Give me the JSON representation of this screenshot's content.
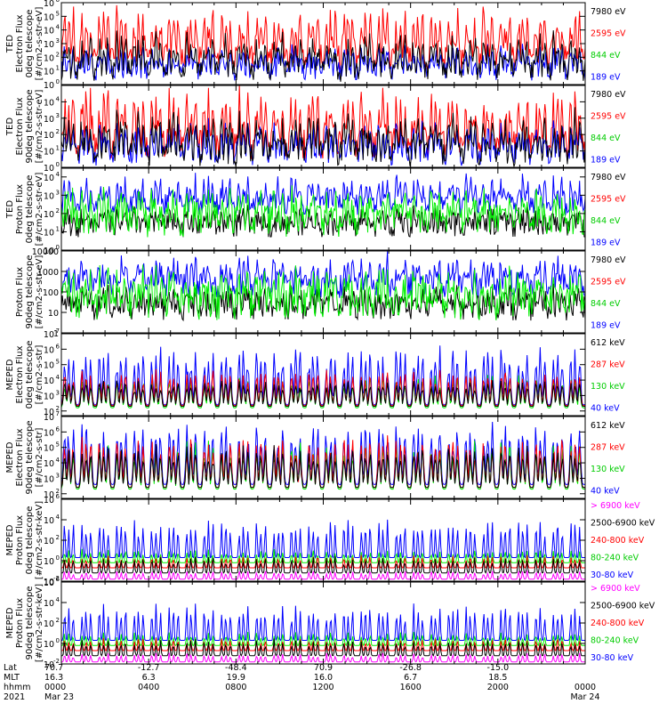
{
  "chart_data": {
    "type": "line",
    "x_start": "2021-03-23 00:00",
    "x_end": "2021-03-24 00:00",
    "x_ticks": [
      {
        "lat": "70.7",
        "mlt": "16.3",
        "hhmm": "0000",
        "date": "Mar 23"
      },
      {
        "lat": "-12.7",
        "mlt": "6.3",
        "hhmm": "0400",
        "date": ""
      },
      {
        "lat": "-48.4",
        "mlt": "19.9",
        "hhmm": "0800",
        "date": ""
      },
      {
        "lat": "70.9",
        "mlt": "16.0",
        "hhmm": "1200",
        "date": ""
      },
      {
        "lat": "-26.8",
        "mlt": "6.7",
        "hhmm": "1600",
        "date": ""
      },
      {
        "lat": "-15.0",
        "mlt": "18.5",
        "hhmm": "2000",
        "date": ""
      },
      {
        "lat": "",
        "mlt": "",
        "hhmm": "0000",
        "date": "Mar 24"
      }
    ],
    "row_labels": [
      "Lat",
      "MLT",
      "hhmm",
      "2021"
    ],
    "panels": [
      {
        "ylabel": [
          "TED",
          "Electron Flux",
          "0deg telescope",
          "[#/cm2-s-str-eV]"
        ],
        "yscale": "log",
        "ylim": [
          1,
          1000000
        ],
        "yticks": [
          {
            "v": 1,
            "label": "10",
            "exp": "0"
          },
          {
            "v": 10,
            "label": "10",
            "exp": "1"
          },
          {
            "v": 100,
            "label": "10",
            "exp": "2"
          },
          {
            "v": 1000,
            "label": "10",
            "exp": "3"
          },
          {
            "v": 10000,
            "label": "10",
            "exp": "4"
          },
          {
            "v": 100000,
            "label": "10",
            "exp": "5"
          },
          {
            "v": 1000000,
            "label": "10",
            "exp": "6"
          }
        ],
        "legend": [
          {
            "name": "7980 eV",
            "color": "#000000"
          },
          {
            "name": "2595 eV",
            "color": "#ff0000"
          },
          {
            "name": "844 eV",
            "color": "#00cc00"
          },
          {
            "name": "189 eV",
            "color": "#0000ff"
          }
        ],
        "series": [
          {
            "color": "#ff0000",
            "base": 2,
            "amp": 3.3,
            "noise": 0.9,
            "floor": 0,
            "peakSharp": 1
          },
          {
            "color": "#0000ff",
            "base": 1.0,
            "amp": 1.5,
            "noise": 0.7,
            "floor": 0,
            "peakSharp": 1
          },
          {
            "color": "#000000",
            "base": 1.0,
            "amp": 2.4,
            "noise": 0.8,
            "floor": 0,
            "peakSharp": 1
          }
        ]
      },
      {
        "ylabel": [
          "TED",
          "Electron Flux",
          "90deg telescope",
          "[#/cm2-s-str-eV]"
        ],
        "yscale": "log",
        "ylim": [
          1,
          100000
        ],
        "yticks": [
          {
            "v": 1,
            "label": "10",
            "exp": "0"
          },
          {
            "v": 10,
            "label": "10",
            "exp": "1"
          },
          {
            "v": 100,
            "label": "10",
            "exp": "2"
          },
          {
            "v": 1000,
            "label": "10",
            "exp": "3"
          },
          {
            "v": 10000,
            "label": "10",
            "exp": "4"
          }
        ],
        "legend": [
          {
            "name": "7980 eV",
            "color": "#000000"
          },
          {
            "name": "2595 eV",
            "color": "#ff0000"
          },
          {
            "name": "844 eV",
            "color": "#00cc00"
          },
          {
            "name": "189 eV",
            "color": "#0000ff"
          }
        ],
        "series": [
          {
            "color": "#ff0000",
            "base": 1.4,
            "amp": 3.0,
            "noise": 0.9,
            "floor": 0,
            "peakSharp": 1
          },
          {
            "color": "#0000ff",
            "base": 0.8,
            "amp": 1.6,
            "noise": 0.7,
            "floor": 0,
            "peakSharp": 1
          },
          {
            "color": "#000000",
            "base": 0.8,
            "amp": 2.2,
            "noise": 0.8,
            "floor": 0,
            "peakSharp": 1
          }
        ]
      },
      {
        "ylabel": [
          "TED",
          "Proton Flux",
          "0deg telescope",
          "[#/cm2-s-str-eV]"
        ],
        "yscale": "log",
        "ylim": [
          1,
          30000
        ],
        "yticks": [
          {
            "v": 1,
            "label": "10",
            "exp": "0"
          },
          {
            "v": 10,
            "label": "10",
            "exp": "1"
          },
          {
            "v": 100,
            "label": "10",
            "exp": "2"
          },
          {
            "v": 1000,
            "label": "10",
            "exp": "3"
          },
          {
            "v": 10000,
            "label": "10",
            "exp": "4"
          }
        ],
        "legend": [
          {
            "name": "7980 eV",
            "color": "#000000"
          },
          {
            "name": "2595 eV",
            "color": "#ff0000"
          },
          {
            "name": "844 eV",
            "color": "#00cc00"
          },
          {
            "name": "189 eV",
            "color": "#0000ff"
          }
        ],
        "series": [
          {
            "color": "#0000ff",
            "base": 2.5,
            "amp": 1.2,
            "noise": 0.6,
            "floor": 0,
            "peakSharp": 0
          },
          {
            "color": "#000000",
            "base": 1.3,
            "amp": 0.6,
            "noise": 0.6,
            "floor": 0,
            "peakSharp": 0
          },
          {
            "color": "#00ee00",
            "base": 1.6,
            "amp": 1.3,
            "noise": 0.9,
            "floor": 0,
            "peakSharp": 0
          }
        ]
      },
      {
        "ylabel": [
          "Proton Flux",
          "90deg telescope",
          "[#/cm2-s-str-eV]"
        ],
        "yscale": "log",
        "ylim": [
          1,
          10000
        ],
        "yticks": [
          {
            "v": 1,
            "label": "1",
            "exp": ""
          },
          {
            "v": 10,
            "label": "10",
            "exp": ""
          },
          {
            "v": 100,
            "label": "100",
            "exp": ""
          },
          {
            "v": 1000,
            "label": "1000",
            "exp": ""
          },
          {
            "v": 10000,
            "label": "10000",
            "exp": ""
          }
        ],
        "legend": [
          {
            "name": "7980 eV",
            "color": "#000000"
          },
          {
            "name": "2595 eV",
            "color": "#ff0000"
          },
          {
            "name": "844 eV",
            "color": "#00cc00"
          },
          {
            "name": "189 eV",
            "color": "#0000ff"
          }
        ],
        "series": [
          {
            "color": "#0000ff",
            "base": 2.3,
            "amp": 1.1,
            "noise": 0.6,
            "floor": 0,
            "peakSharp": 0
          },
          {
            "color": "#000000",
            "base": 1.2,
            "amp": 0.7,
            "noise": 0.6,
            "floor": 0,
            "peakSharp": 0
          },
          {
            "color": "#00ee00",
            "base": 1.5,
            "amp": 1.1,
            "noise": 0.9,
            "floor": 0,
            "peakSharp": 0
          }
        ]
      },
      {
        "ylabel": [
          "MEPED",
          "Electron Flux",
          "0deg telescope",
          "[#/cm2-s-str]"
        ],
        "yscale": "log",
        "ylim": [
          50,
          10000000
        ],
        "yticks": [
          {
            "v": 100,
            "label": "10",
            "exp": "2"
          },
          {
            "v": 1000,
            "label": "10",
            "exp": "3"
          },
          {
            "v": 10000,
            "label": "10",
            "exp": "4"
          },
          {
            "v": 100000,
            "label": "10",
            "exp": "5"
          },
          {
            "v": 1000000,
            "label": "10",
            "exp": "6"
          },
          {
            "v": 10000000,
            "label": "10",
            "exp": "7"
          }
        ],
        "legend": [
          {
            "name": "612 keV",
            "color": "#000000"
          },
          {
            "name": "287 keV",
            "color": "#ff0000"
          },
          {
            "name": "130 keV",
            "color": "#00cc00"
          },
          {
            "name": "40 keV",
            "color": "#0000ff"
          }
        ],
        "series": [
          {
            "color": "#0000ff",
            "base": 2.4,
            "amp": 3.6,
            "noise": 0.4,
            "floor": 2.1,
            "peakSharp": 1
          },
          {
            "color": "#00ee00",
            "base": 2.2,
            "amp": 2.0,
            "noise": 0.3,
            "floor": 2.1,
            "peakSharp": 1
          },
          {
            "color": "#ff0000",
            "base": 2.35,
            "amp": 2.2,
            "noise": 0.3,
            "floor": 2.2,
            "peakSharp": 1
          },
          {
            "color": "#000000",
            "base": 2.3,
            "amp": 1.7,
            "noise": 0.3,
            "floor": 2.2,
            "peakSharp": 1
          }
        ]
      },
      {
        "ylabel": [
          "MEPED",
          "Electron Flux",
          "90deg telescope",
          "[#/cm2-s-str]"
        ],
        "yscale": "log",
        "ylim": [
          50,
          10000000
        ],
        "yticks": [
          {
            "v": 100,
            "label": "10",
            "exp": "2"
          },
          {
            "v": 1000,
            "label": "10",
            "exp": "3"
          },
          {
            "v": 10000,
            "label": "10",
            "exp": "4"
          },
          {
            "v": 100000,
            "label": "10",
            "exp": "5"
          },
          {
            "v": 1000000,
            "label": "10",
            "exp": "6"
          },
          {
            "v": 10000000,
            "label": "10",
            "exp": "7"
          }
        ],
        "legend": [
          {
            "name": "612 keV",
            "color": "#000000"
          },
          {
            "name": "287 keV",
            "color": "#ff0000"
          },
          {
            "name": "130 keV",
            "color": "#00cc00"
          },
          {
            "name": "40 keV",
            "color": "#0000ff"
          }
        ],
        "series": [
          {
            "color": "#0000ff",
            "base": 2.6,
            "amp": 4.0,
            "noise": 0.4,
            "floor": 2.1,
            "peakSharp": 1
          },
          {
            "color": "#00ee00",
            "base": 2.3,
            "amp": 3.0,
            "noise": 0.4,
            "floor": 2.1,
            "peakSharp": 1
          },
          {
            "color": "#ff0000",
            "base": 2.4,
            "amp": 3.2,
            "noise": 0.4,
            "floor": 2.2,
            "peakSharp": 1
          },
          {
            "color": "#000000",
            "base": 2.4,
            "amp": 2.6,
            "noise": 0.4,
            "floor": 2.2,
            "peakSharp": 1
          }
        ]
      },
      {
        "ylabel": [
          "MEPED",
          "Proton Flux",
          "0deg telescope",
          "[#/cm2-s-str-keV]"
        ],
        "yscale": "log",
        "ylim": [
          0.01,
          1000000
        ],
        "yticks": [
          {
            "v": 0.01,
            "label": "10",
            "exp": "-2"
          },
          {
            "v": 1,
            "label": "10",
            "exp": "0"
          },
          {
            "v": 100,
            "label": "10",
            "exp": "2"
          },
          {
            "v": 10000,
            "label": "10",
            "exp": "4"
          },
          {
            "v": 1000000,
            "label": "10",
            "exp": "6"
          }
        ],
        "legend": [
          {
            "name": "> 6900 keV",
            "color": "#ff00ff"
          },
          {
            "name": "2500-6900 keV",
            "color": "#000000"
          },
          {
            "name": "240-800 keV",
            "color": "#ff0000"
          },
          {
            "name": "80-240 keV",
            "color": "#00cc00"
          },
          {
            "name": "30-80 keV",
            "color": "#0000ff"
          }
        ],
        "series": [
          {
            "color": "#0000ff",
            "base": 0.3,
            "amp": 3.8,
            "noise": 0.3,
            "floor": 0.2,
            "peakSharp": 2
          },
          {
            "color": "#00ee00",
            "base": -0.2,
            "amp": 1.3,
            "noise": 0.2,
            "floor": -0.4,
            "peakSharp": 2
          },
          {
            "color": "#ff0000",
            "base": -0.7,
            "amp": 1.2,
            "noise": 0.2,
            "floor": -0.8,
            "peakSharp": 2
          },
          {
            "color": "#000000",
            "base": -1.2,
            "amp": 1.6,
            "noise": 0.2,
            "floor": -1.2,
            "peakSharp": 3
          },
          {
            "color": "#ff00ff",
            "base": -1.8,
            "amp": 0.8,
            "noise": 0.2,
            "floor": -1.8,
            "peakSharp": 3
          }
        ]
      },
      {
        "ylabel": [
          "MEPED",
          "Proton Flux",
          "90deg telescope",
          "[#/cm2-s-str-keV]"
        ],
        "yscale": "log",
        "ylim": [
          0.01,
          1000000
        ],
        "yticks": [
          {
            "v": 0.01,
            "label": "10",
            "exp": "-2"
          },
          {
            "v": 1,
            "label": "10",
            "exp": "0"
          },
          {
            "v": 100,
            "label": "10",
            "exp": "2"
          },
          {
            "v": 10000,
            "label": "10",
            "exp": "4"
          },
          {
            "v": 1000000,
            "label": "10",
            "exp": "6"
          }
        ],
        "legend": [
          {
            "name": "> 6900 keV",
            "color": "#ff00ff"
          },
          {
            "name": "2500-6900 keV",
            "color": "#000000"
          },
          {
            "name": "240-800 keV",
            "color": "#ff0000"
          },
          {
            "name": "80-240 keV",
            "color": "#00cc00"
          },
          {
            "name": "30-80 keV",
            "color": "#0000ff"
          }
        ],
        "series": [
          {
            "color": "#0000ff",
            "base": 0.3,
            "amp": 3.6,
            "noise": 0.3,
            "floor": 0.2,
            "peakSharp": 2
          },
          {
            "color": "#00ee00",
            "base": -0.2,
            "amp": 1.3,
            "noise": 0.2,
            "floor": -0.4,
            "peakSharp": 2
          },
          {
            "color": "#ff0000",
            "base": -0.7,
            "amp": 1.2,
            "noise": 0.2,
            "floor": -0.8,
            "peakSharp": 2
          },
          {
            "color": "#000000",
            "base": -1.2,
            "amp": 1.6,
            "noise": 0.2,
            "floor": -1.2,
            "peakSharp": 3
          },
          {
            "color": "#ff00ff",
            "base": -1.8,
            "amp": 0.8,
            "noise": 0.2,
            "floor": -1.8,
            "peakSharp": 3
          }
        ]
      }
    ],
    "orbit_count": 15
  }
}
